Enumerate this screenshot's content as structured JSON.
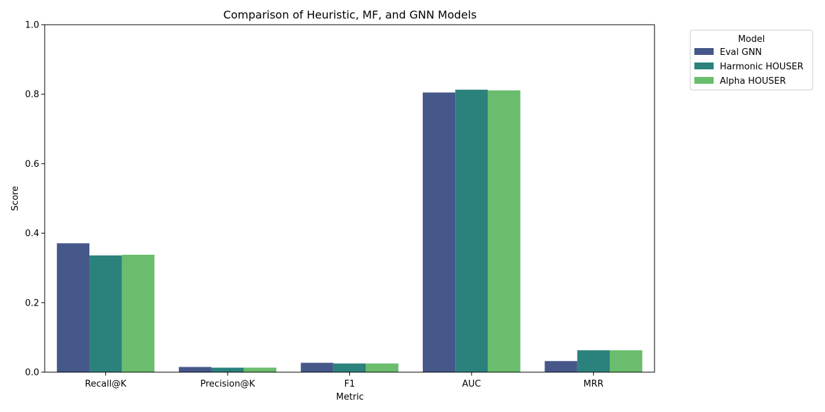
{
  "chart_data": {
    "type": "bar",
    "title": "Comparison of Heuristic, MF, and GNN Models",
    "xlabel": "Metric",
    "ylabel": "Score",
    "ylim": [
      0,
      1.0
    ],
    "yticks": [
      "0.0",
      "0.2",
      "0.4",
      "0.6",
      "0.8",
      "1.0"
    ],
    "categories": [
      "Recall@K",
      "Precision@K",
      "F1",
      "AUC",
      "MRR"
    ],
    "series": [
      {
        "name": "Eval GNN",
        "color": "#46578a",
        "values": [
          0.371,
          0.015,
          0.027,
          0.805,
          0.032
        ]
      },
      {
        "name": "Harmonic HOUSER",
        "color": "#2b817c",
        "values": [
          0.336,
          0.013,
          0.025,
          0.813,
          0.063
        ]
      },
      {
        "name": "Alpha HOUSER",
        "color": "#6abd6d",
        "values": [
          0.338,
          0.013,
          0.025,
          0.811,
          0.063
        ]
      }
    ],
    "legend": {
      "title": "Model",
      "placement": "outside-top-right"
    },
    "grid": false
  }
}
